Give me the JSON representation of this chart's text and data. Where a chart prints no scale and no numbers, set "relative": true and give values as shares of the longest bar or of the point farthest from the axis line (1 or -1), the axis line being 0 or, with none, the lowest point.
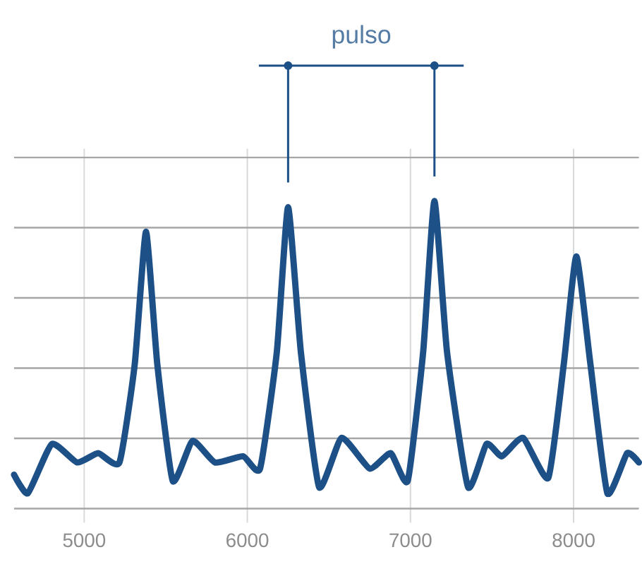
{
  "chart_data": {
    "type": "line",
    "relative": true,
    "color": "#1d5086",
    "grid": true,
    "xlim": [
      4570,
      8400
    ],
    "xticks": [
      5000,
      6000,
      7000,
      8000
    ],
    "x": [
      4570,
      4655,
      4802,
      4957,
      5086,
      5216,
      5310,
      5379,
      5448,
      5543,
      5664,
      5802,
      5974,
      6078,
      6181,
      6250,
      6328,
      6440,
      6578,
      6750,
      6879,
      6983,
      7078,
      7147,
      7224,
      7353,
      7466,
      7560,
      7690,
      7845,
      7940,
      8017,
      8103,
      8207,
      8328,
      8400
    ],
    "values": [
      0.11,
      0.05,
      0.21,
      0.15,
      0.18,
      0.15,
      0.47,
      0.9,
      0.47,
      0.09,
      0.22,
      0.15,
      0.17,
      0.13,
      0.51,
      0.98,
      0.51,
      0.07,
      0.23,
      0.13,
      0.18,
      0.09,
      0.51,
      1.0,
      0.51,
      0.07,
      0.21,
      0.17,
      0.23,
      0.1,
      0.47,
      0.82,
      0.47,
      0.05,
      0.18,
      0.15
    ],
    "annotations": [
      "pulso"
    ]
  }
}
